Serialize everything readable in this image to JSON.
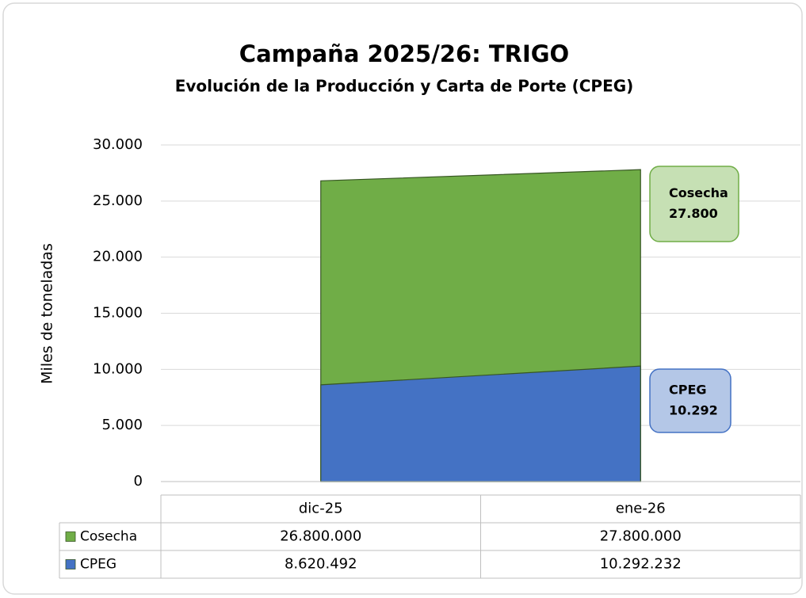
{
  "chart_data": {
    "type": "area",
    "title": "Campaña 2025/26: TRIGO",
    "subtitle": "Evolución de la Producción y Carta de Porte (CPEG)",
    "y_label": "Miles de toneladas",
    "categories": [
      "dic-25",
      "ene-26"
    ],
    "series": [
      {
        "name": "Cosecha",
        "color": "#70ad47",
        "values": [
          26800,
          27800
        ],
        "value_labels": [
          "26.800.000",
          "27.800.000"
        ]
      },
      {
        "name": "CPEG",
        "color": "#4472c4",
        "values": [
          8620.492,
          10292.232
        ],
        "value_labels": [
          "8.620.492",
          "10.292.232"
        ]
      }
    ],
    "annotations": [
      {
        "lines": [
          "Cosecha",
          "27.800"
        ],
        "fill": "#c6e0b4",
        "stroke": "#70ad47"
      },
      {
        "lines": [
          "CPEG",
          "10.292"
        ],
        "fill": "#b4c7e7",
        "stroke": "#4472c4"
      }
    ],
    "ylim": [
      0,
      30000
    ],
    "yticks": [
      0,
      {
        "value": 5000,
        "label": "5.000"
      },
      {
        "value": 10000,
        "label": "10.000"
      },
      {
        "value": 15000,
        "label": "15.000"
      },
      {
        "value": 20000,
        "label": "20.000"
      },
      {
        "value": 25000,
        "label": "25.000"
      },
      {
        "value": 30000,
        "label": "30.000"
      }
    ],
    "grid": true
  }
}
